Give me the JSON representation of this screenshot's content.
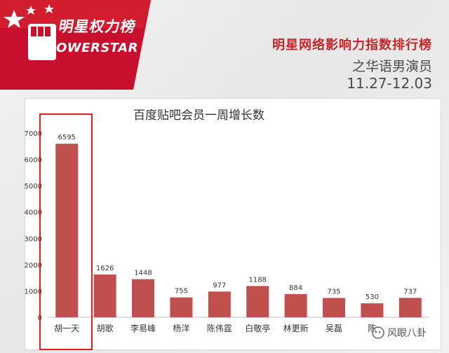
{
  "header": {
    "logo_cn": "明星权力榜",
    "logo_en": "OWERSTAR",
    "title": "明星网络影响力指数排行榜",
    "subtitle": "之华语男演员",
    "date_range": "11.27-12.03"
  },
  "watermark": {
    "text": "风眼八卦"
  },
  "colors": {
    "bar": "#c0504d",
    "accent": "#c7262b",
    "highlight": "#e02020"
  },
  "chart_data": {
    "type": "bar",
    "title": "百度贴吧会员一周增长数",
    "categories": [
      "胡一天",
      "胡歌",
      "李易峰",
      "杨洋",
      "陈伟霆",
      "白敬亭",
      "林更新",
      "吴磊",
      "陈",
      "ㅤ"
    ],
    "values": [
      6595,
      1626,
      1448,
      755,
      977,
      1188,
      884,
      735,
      530,
      737
    ],
    "ylim": [
      0,
      7000
    ],
    "yticks": [
      0,
      1000,
      2000,
      3000,
      4000,
      5000,
      6000,
      7000
    ],
    "grid": false,
    "highlighted": "胡一天"
  }
}
